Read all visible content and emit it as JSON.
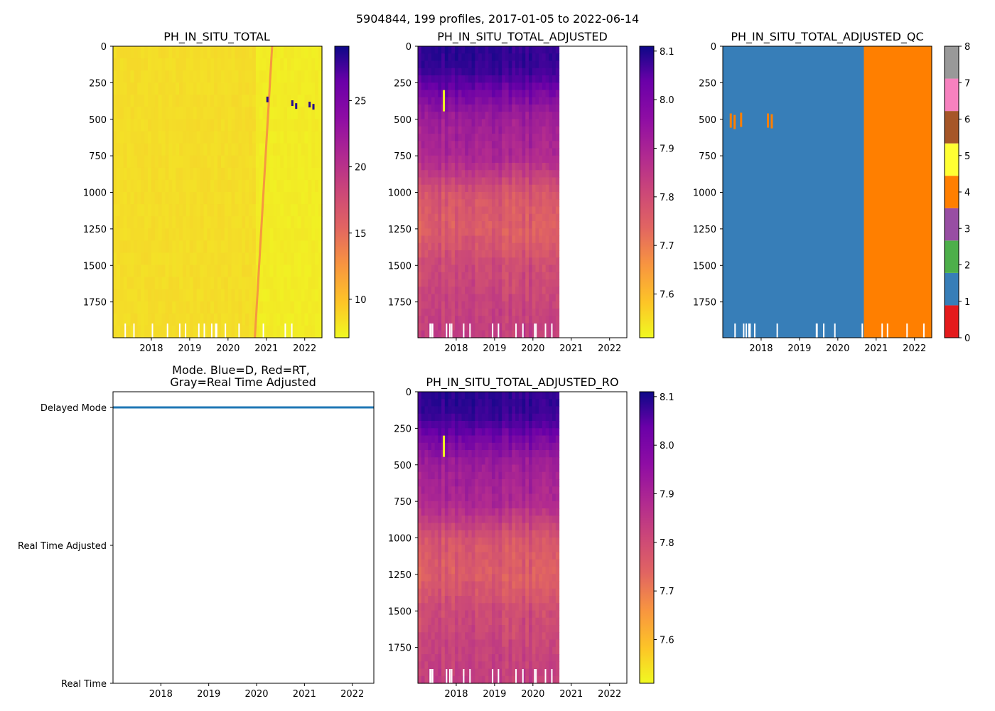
{
  "figure_title": "5904844, 199 profiles, 2017-01-05 to 2022-06-14",
  "chart_data": [
    {
      "id": "raw",
      "type": "heatmap",
      "title": "PH_IN_SITU_TOTAL",
      "xlabel": "",
      "ylabel": "",
      "x_ticks": [
        "2018",
        "2019",
        "2020",
        "2021",
        "2022"
      ],
      "x_tick_years": [
        2018,
        2019,
        2020,
        2021,
        2022
      ],
      "xlim": [
        2017.0,
        2022.45
      ],
      "y_ticks": [
        0,
        250,
        500,
        750,
        1000,
        1250,
        1500,
        1750
      ],
      "ylim": [
        1995,
        0
      ],
      "colormap": "plasma_r",
      "colorbar": {
        "min": 7.1,
        "max": 29.1,
        "ticks": [
          10,
          15,
          20,
          25
        ],
        "tick_labels": [
          "10",
          "15",
          "20",
          "25"
        ]
      },
      "fill_value_before_2020_7": 8.6,
      "fill_value_after_2020_7": 7.8,
      "drift_line": {
        "start_year": 2020.7,
        "end_year": 2021.15,
        "value": 12.5
      }
    },
    {
      "id": "adjusted",
      "type": "heatmap",
      "title": "PH_IN_SITU_TOTAL_ADJUSTED",
      "xlabel": "",
      "ylabel": "",
      "x_ticks": [
        "2018",
        "2019",
        "2020",
        "2021",
        "2022"
      ],
      "x_tick_years": [
        2018,
        2019,
        2020,
        2021,
        2022
      ],
      "xlim": [
        2017.0,
        2022.45
      ],
      "data_end_year": 2020.68,
      "y_ticks": [
        0,
        250,
        500,
        750,
        1000,
        1250,
        1500,
        1750
      ],
      "ylim": [
        1995,
        0
      ],
      "colormap": "plasma_r",
      "colorbar": {
        "min": 7.51,
        "max": 8.11,
        "ticks": [
          7.6,
          7.7,
          7.8,
          7.9,
          8.0,
          8.1
        ],
        "tick_labels": [
          "7.6",
          "7.7",
          "7.8",
          "7.9",
          "8.0",
          "8.1"
        ]
      },
      "depth_profile": {
        "depths": [
          0,
          150,
          300,
          500,
          750,
          1000,
          1250,
          1500,
          1995
        ],
        "values": [
          8.07,
          8.06,
          7.98,
          7.9,
          7.88,
          7.78,
          7.76,
          7.8,
          7.83
        ]
      }
    },
    {
      "id": "qc",
      "type": "heatmap",
      "title": "PH_IN_SITU_TOTAL_ADJUSTED_QC",
      "xlabel": "",
      "ylabel": "",
      "x_ticks": [
        "2018",
        "2019",
        "2020",
        "2021",
        "2022"
      ],
      "x_tick_years": [
        2018,
        2019,
        2020,
        2021,
        2022
      ],
      "xlim": [
        2017.0,
        2022.45
      ],
      "qc_switch_year": 2020.68,
      "qc_before": 1,
      "qc_after": 4,
      "y_ticks": [
        0,
        250,
        500,
        750,
        1000,
        1250,
        1500,
        1750
      ],
      "ylim": [
        1995,
        0
      ],
      "colorbar": {
        "min": 0,
        "max": 8,
        "ticks": [
          0,
          1,
          2,
          3,
          4,
          5,
          6,
          7,
          8
        ],
        "tick_labels": [
          "0",
          "1",
          "2",
          "3",
          "4",
          "5",
          "6",
          "7",
          "8"
        ],
        "classes": [
          "#e41a1c",
          "#377eb8",
          "#4daf4a",
          "#984ea3",
          "#ff7f00",
          "#ffff33",
          "#a65628",
          "#f781bf",
          "#999999"
        ]
      }
    },
    {
      "id": "mode",
      "type": "line",
      "title": "Mode. Blue=D, Red=RT,",
      "title_line2": "Gray=Real Time Adjusted",
      "xlabel": "",
      "ylabel": "",
      "x_ticks": [
        "2018",
        "2019",
        "2020",
        "2021",
        "2022"
      ],
      "x_tick_years": [
        2018,
        2019,
        2020,
        2021,
        2022
      ],
      "xlim": [
        2017.0,
        2022.45
      ],
      "y_categories": [
        "Real Time",
        "Real Time Adjusted",
        "Delayed Mode"
      ],
      "series": [
        {
          "name": "Delayed Mode",
          "color": "#1f77b4",
          "x": [
            2017.0,
            2022.45
          ],
          "y": [
            "Delayed Mode",
            "Delayed Mode"
          ]
        }
      ]
    },
    {
      "id": "adjusted_ro",
      "type": "heatmap",
      "title": "PH_IN_SITU_TOTAL_ADJUSTED_RO",
      "xlabel": "",
      "ylabel": "",
      "x_ticks": [
        "2018",
        "2019",
        "2020",
        "2021",
        "2022"
      ],
      "x_tick_years": [
        2018,
        2019,
        2020,
        2021,
        2022
      ],
      "xlim": [
        2017.0,
        2022.45
      ],
      "data_end_year": 2020.68,
      "y_ticks": [
        0,
        250,
        500,
        750,
        1000,
        1250,
        1500,
        1750
      ],
      "ylim": [
        1995,
        0
      ],
      "colormap": "plasma_r",
      "colorbar": {
        "min": 7.51,
        "max": 8.11,
        "ticks": [
          7.6,
          7.7,
          7.8,
          7.9,
          8.0,
          8.1
        ],
        "tick_labels": [
          "7.6",
          "7.7",
          "7.8",
          "7.9",
          "8.0",
          "8.1"
        ]
      },
      "depth_profile": {
        "depths": [
          0,
          150,
          300,
          500,
          750,
          1000,
          1250,
          1500,
          1995
        ],
        "values": [
          8.07,
          8.06,
          7.98,
          7.9,
          7.88,
          7.78,
          7.76,
          7.8,
          7.83
        ]
      }
    }
  ]
}
